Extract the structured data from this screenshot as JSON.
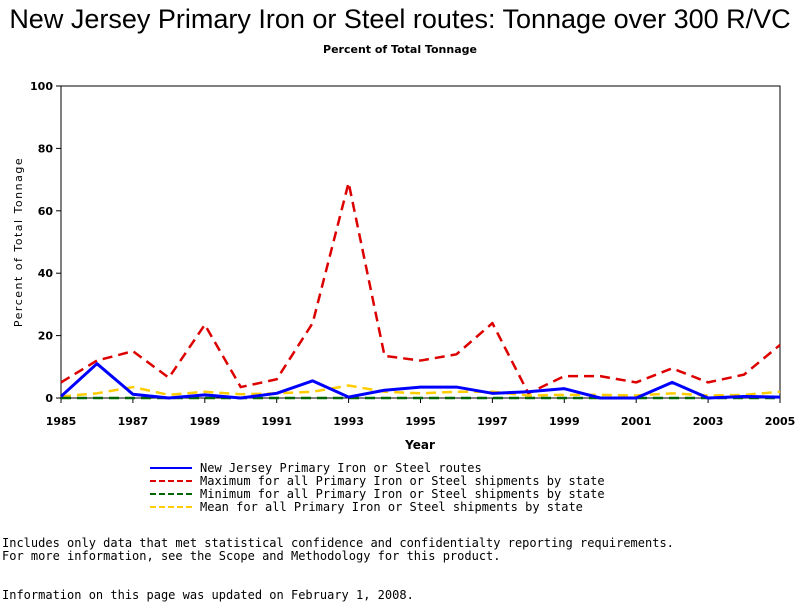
{
  "chart_data": {
    "type": "line",
    "title": "New Jersey Primary Iron or Steel routes: Tonnage over 300 R/VC",
    "subtitle": "Percent of Total Tonnage",
    "xlabel": "Year",
    "ylabel": "Percent of Total Tonnage",
    "xlim": [
      1985,
      2005
    ],
    "ylim": [
      0,
      100
    ],
    "x_ticks": [
      "1985",
      "1987",
      "1989",
      "1991",
      "1993",
      "1995",
      "1997",
      "1999",
      "2001",
      "2003",
      "2005"
    ],
    "y_ticks": [
      "0",
      "20",
      "40",
      "60",
      "80",
      "100"
    ],
    "x": [
      1985,
      1986,
      1987,
      1988,
      1989,
      1990,
      1991,
      1992,
      1993,
      1994,
      1995,
      1996,
      1997,
      1998,
      1999,
      2000,
      2001,
      2002,
      2003,
      2004,
      2005
    ],
    "series": [
      {
        "name": "New Jersey Primary Iron or Steel routes",
        "color": "#0000ff",
        "dash": "solid",
        "values": [
          0.5,
          11,
          1.2,
          0,
          1,
          0,
          1.5,
          5.5,
          0.3,
          2.5,
          3.5,
          3.5,
          1.5,
          2,
          3,
          0,
          0,
          5,
          0,
          0.5,
          0.3
        ]
      },
      {
        "name": "Maximum for all Primary Iron or Steel shipments by state",
        "color": "#dd0000",
        "dash": "dashed",
        "values": [
          5,
          12,
          15,
          6.5,
          23.5,
          3.5,
          6,
          24,
          69,
          13.5,
          12,
          14,
          24,
          1.5,
          7,
          7,
          5,
          9.5,
          5,
          7.5,
          17
        ]
      },
      {
        "name": "Minimum for all Primary Iron or Steel shipments by state",
        "color": "#006600",
        "dash": "dashed",
        "values": [
          0,
          0,
          0,
          0,
          0,
          0,
          0,
          0,
          0,
          0,
          0,
          0,
          0,
          0,
          0,
          0,
          0,
          0,
          0,
          0,
          0
        ]
      },
      {
        "name": "Mean for all Primary Iron or Steel shipments by state",
        "color": "#ffcc00",
        "dash": "dashed",
        "values": [
          0.5,
          1.5,
          3.5,
          1,
          2,
          1.2,
          1.5,
          2,
          4,
          2,
          1.5,
          2,
          2,
          0.8,
          1,
          1,
          0.8,
          1.5,
          0.8,
          1,
          2
        ]
      }
    ]
  },
  "notes": {
    "line1": "Includes only data that met statistical confidence and confidentialty reporting requirements.",
    "line2": "For more information, see the Scope and Methodology for this product.",
    "line3": "Information on this page was updated on February 1, 2008."
  }
}
